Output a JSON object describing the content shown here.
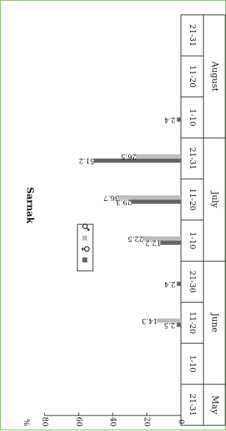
{
  "chart_data": {
    "type": "bar",
    "orientation": "rotated-90-clockwise",
    "title": "Sarnak",
    "ylabel": "%",
    "ylim": [
      0,
      80
    ],
    "yticks": [
      0,
      20,
      40,
      60,
      80
    ],
    "months": [
      {
        "name": "May",
        "decades": [
          "21-31"
        ]
      },
      {
        "name": "June",
        "decades": [
          "1-10",
          "11-20",
          "21-30"
        ]
      },
      {
        "name": "July",
        "decades": [
          "1-10",
          "11-20",
          "21-31"
        ]
      },
      {
        "name": "August",
        "decades": [
          "1-10",
          "11-20",
          "21-31"
        ]
      }
    ],
    "categories": [
      "21-31",
      "1-10",
      "11-20",
      "21-30",
      "1-10",
      "11-20",
      "21-31",
      "1-10",
      "11-20",
      "21-31"
    ],
    "series": [
      {
        "name": "♀",
        "color": "#666666",
        "values": [
          null,
          null,
          2.5,
          2.4,
          12.2,
          29.3,
          51.2,
          2.4,
          null,
          null
        ]
      },
      {
        "name": "♂",
        "color": "#bdbdbd",
        "values": [
          null,
          null,
          14.3,
          null,
          22.5,
          36.7,
          26.5,
          null,
          null,
          null
        ]
      }
    ],
    "data_labels": {
      "♀": [
        null,
        null,
        "2.5",
        "2.4",
        "12.2",
        "29.3",
        "51.2",
        "2.4",
        null,
        null
      ],
      "♂": [
        null,
        null,
        "14.3",
        null,
        "22.5",
        "36.7",
        "26.5",
        null,
        null,
        null
      ]
    },
    "legend": {
      "position": "top-left",
      "entries": [
        "♀",
        "♂"
      ]
    },
    "grid": false
  }
}
